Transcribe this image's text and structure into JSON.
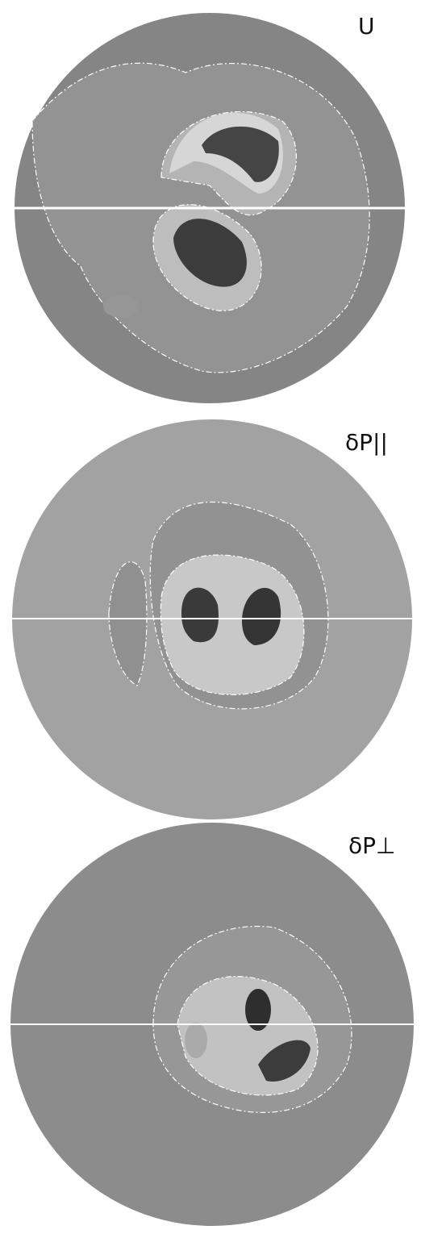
{
  "panels": [
    {
      "label": "U"
    },
    {
      "label": "δP||"
    },
    {
      "label": "δP⊥"
    }
  ]
}
